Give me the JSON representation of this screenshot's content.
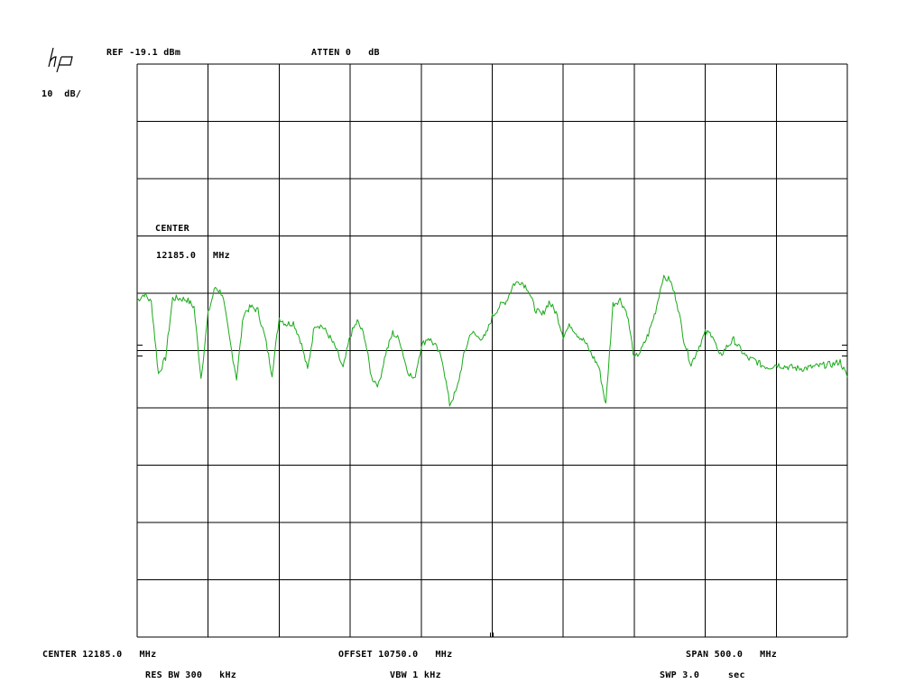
{
  "header": {
    "ref": "REF -19.1 dBm",
    "atten": "ATTEN 0   dB",
    "scale": "10  dB/"
  },
  "annotation": {
    "center_label": "CENTER",
    "center_value": "12185.0",
    "center_unit": "MHz"
  },
  "footer": {
    "center": "CENTER 12185.0   MHz",
    "offset": "OFFSET 10750.0   MHz",
    "span": "SPAN 500.0   MHz",
    "res_bw": "RES BW 300   kHz",
    "vbw": "VBW 1 kHz",
    "sweep": "SWP 3.0     sec"
  },
  "logo": {
    "icon": "hp-logo-icon",
    "text": "hp"
  },
  "colors": {
    "trace": "#1aaa1a",
    "grid": "#000000",
    "background": "#ffffff"
  },
  "chart_data": {
    "type": "line",
    "title": "",
    "xlabel": "",
    "ylabel": "",
    "x_unit": "MHz",
    "y_unit": "dBm",
    "xlim": [
      11935.0,
      12435.0
    ],
    "ylim": [
      -119.1,
      -19.1
    ],
    "x_divisions": 10,
    "y_divisions": 10,
    "grid": true,
    "legend": "none",
    "series": [
      {
        "x": [
          11935,
          11940,
          11945,
          11950,
          11955,
          11960,
          11965,
          11970,
          11975,
          11980,
          11985,
          11990,
          11995,
          12000,
          12005,
          12010,
          12015,
          12020,
          12025,
          12030,
          12035,
          12040,
          12045,
          12050,
          12055,
          12060,
          12065,
          12070,
          12075,
          12080,
          12085,
          12090,
          12095,
          12100,
          12105,
          12110,
          12115,
          12120,
          12125,
          12130,
          12135,
          12140,
          12145,
          12150,
          12155,
          12160,
          12165,
          12170,
          12175,
          12180,
          12185,
          12190,
          12195,
          12200,
          12205,
          12210,
          12215,
          12220,
          12225,
          12230,
          12235,
          12240,
          12245,
          12250,
          12255,
          12260,
          12265,
          12270,
          12275,
          12280,
          12285,
          12290,
          12295,
          12300,
          12305,
          12310,
          12315,
          12320,
          12325,
          12330,
          12335,
          12340,
          12345,
          12350,
          12355,
          12360,
          12365,
          12370,
          12375,
          12380,
          12385,
          12390,
          12395,
          12400,
          12405,
          12410,
          12415,
          12420,
          12425,
          12430,
          12435
        ],
        "y": [
          -60.4,
          -59.2,
          -60.7,
          -73.2,
          -70.4,
          -60.0,
          -60.0,
          -60.2,
          -61.5,
          -73.9,
          -62.6,
          -58.0,
          -59.2,
          -67.0,
          -73.9,
          -62.6,
          -61.5,
          -62.1,
          -66.8,
          -73.2,
          -63.4,
          -64.5,
          -64.2,
          -67.3,
          -72.5,
          -64.5,
          -64.8,
          -66.5,
          -68.8,
          -72.3,
          -66.5,
          -64.0,
          -66.5,
          -73.8,
          -75.1,
          -69.6,
          -66.0,
          -67.4,
          -72.4,
          -74.3,
          -68.3,
          -66.8,
          -68.3,
          -70.8,
          -78.5,
          -76.0,
          -70.0,
          -65.8,
          -66.8,
          -66.8,
          -63.2,
          -61.4,
          -60.4,
          -57.5,
          -57.0,
          -58.2,
          -61.8,
          -63.0,
          -60.6,
          -62.5,
          -66.5,
          -64.6,
          -66.3,
          -67.5,
          -69.8,
          -71.9,
          -78.6,
          -61.0,
          -60.2,
          -62.6,
          -70.6,
          -69.0,
          -66.2,
          -62.2,
          -56.5,
          -56.7,
          -60.5,
          -67.3,
          -71.5,
          -68.7,
          -66.0,
          -66.2,
          -70.2,
          -68.5,
          -67.2,
          -69.0,
          -70.5,
          -70.8,
          -71.7,
          -72.0,
          -71.5,
          -71.8,
          -72.0,
          -72.2,
          -72.2,
          -72.0,
          -71.8,
          -71.6,
          -71.5,
          -71.0,
          -73.8
        ]
      }
    ]
  }
}
